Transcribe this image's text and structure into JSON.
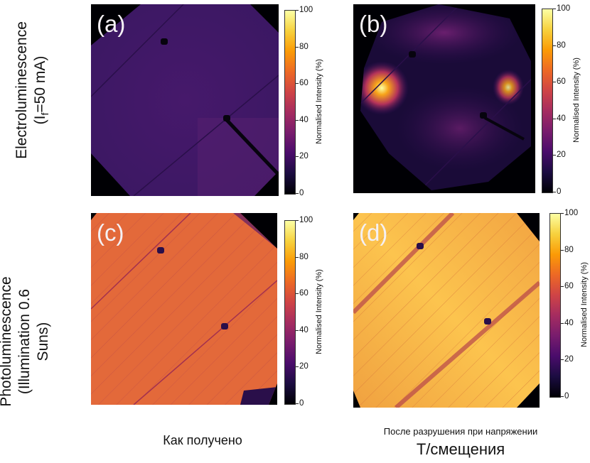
{
  "row_labels": {
    "top_line1": "Electroluminescence",
    "top_line2_main": "(I",
    "top_line2_sub": "f",
    "top_line2_end": "=50 mA)",
    "bottom_line1": "Photoluminescence",
    "bottom_line2": "(Illumination 0.6",
    "bottom_line3": "Suns)"
  },
  "panels": [
    {
      "label": "(a)"
    },
    {
      "label": "(b)"
    },
    {
      "label": "(c)"
    },
    {
      "label": "(d)"
    }
  ],
  "colorbar": {
    "title": "Normalised Intensity (%)",
    "ticks": [
      "100",
      "80",
      "60",
      "40",
      "20",
      "0"
    ],
    "colormap": [
      "#000004",
      "#1b0c41",
      "#4a0c6b",
      "#781c6d",
      "#a52c60",
      "#cf4446",
      "#ed6925",
      "#fb9b06",
      "#f7d13d",
      "#fcffa4"
    ]
  },
  "column_labels": {
    "left": "Как получено",
    "right_line1": "После разрушения при напряжении",
    "right_line2": "Т/смещения"
  },
  "colors": {
    "panel_a_base": "#3d1a63",
    "panel_b_base": "#140a2e",
    "panel_c_base": "#e0643c",
    "panel_d_base": "#f6a040"
  }
}
